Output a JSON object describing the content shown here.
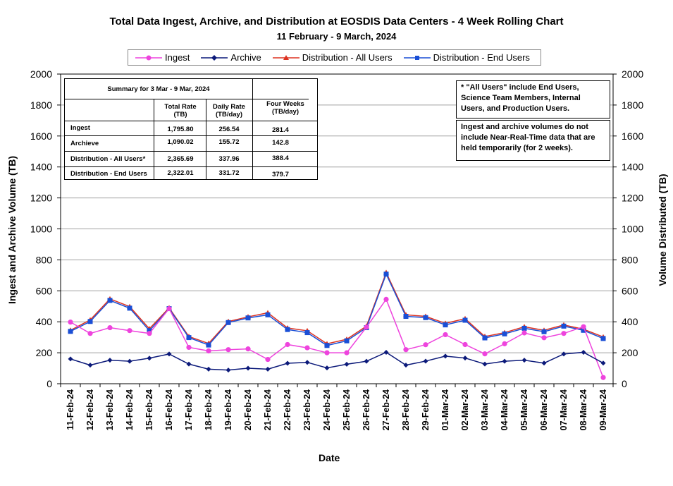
{
  "title": "Total Data Ingest, Archive, and  Distribution at EOSDIS Data Centers - 4 Week Rolling Chart",
  "subtitle": "11  February   -  9  March,  2024",
  "legend": [
    {
      "label": "Ingest",
      "color": "#ee44dd",
      "marker": "circle"
    },
    {
      "label": "Archive",
      "color": "#0c1a7a",
      "marker": "diamond"
    },
    {
      "label": "Distribution - All Users",
      "color": "#dd3322",
      "marker": "triangle"
    },
    {
      "label": "Distribution - End Users",
      "color": "#1a4fd6",
      "marker": "square"
    }
  ],
  "summary": {
    "title": "Summary  for  3  Mar   -  9  Mar,  2024",
    "col_total": "Total Rate\n(TB)",
    "col_daily": "Daily Rate\n(TB/day)",
    "col_four": "Four Weeks\n(TB/day)",
    "rows": [
      {
        "label": "Ingest",
        "total": "1,795.80",
        "daily": "256.54",
        "four": "281.4"
      },
      {
        "label": "Archieve",
        "total": "1,090.02",
        "daily": "155.72",
        "four": "142.8"
      },
      {
        "label": "Distribution - All Users*",
        "total": "2,365.69",
        "daily": "337.96",
        "four": "388.4"
      },
      {
        "label": "Distribution - End Users",
        "total": "2,322.01",
        "daily": "331.72",
        "four": "379.7"
      }
    ]
  },
  "notes": {
    "all_users": "* \"All Users\" include End Users, Science Team Members,  Internal Users, and Production Users.",
    "nrt": "Ingest and archive volumes do not include Near-Real-Time data that are held temporarily (for 2 weeks)."
  },
  "chart_data": {
    "type": "line",
    "title": "Total Data Ingest, Archive, and  Distribution at EOSDIS Data Centers - 4 Week Rolling Chart",
    "subtitle": "11  February   -  9  March,  2024",
    "xlabel": "Date",
    "ylabel": "Ingest and Archive Volume (TB)",
    "y2label": "Volume Distributed (TB)",
    "ylim": [
      0,
      2000
    ],
    "y2lim": [
      0,
      2000
    ],
    "yticks": [
      0,
      200,
      400,
      600,
      800,
      1000,
      1200,
      1400,
      1600,
      1800,
      2000
    ],
    "grid": true,
    "legend_position": "top",
    "categories": [
      "11-Feb-24",
      "12-Feb-24",
      "13-Feb-24",
      "14-Feb-24",
      "15-Feb-24",
      "16-Feb-24",
      "17-Feb-24",
      "18-Feb-24",
      "19-Feb-24",
      "20-Feb-24",
      "21-Feb-24",
      "22-Feb-24",
      "23-Feb-24",
      "24-Feb-24",
      "25-Feb-24",
      "26-Feb-24",
      "27-Feb-24",
      "28-Feb-24",
      "29-Feb-24",
      "01-Mar-24",
      "02-Mar-24",
      "03-Mar-24",
      "04-Mar-24",
      "05-Mar-24",
      "06-Mar-24",
      "07-Mar-24",
      "08-Mar-24",
      "09-Mar-24"
    ],
    "series": [
      {
        "name": "Ingest",
        "color": "#ee44dd",
        "marker": "circle",
        "values": [
          398,
          325,
          362,
          343,
          325,
          485,
          235,
          212,
          220,
          225,
          157,
          253,
          232,
          200,
          200,
          365,
          545,
          220,
          252,
          317,
          253,
          193,
          258,
          328,
          297,
          325,
          368,
          40
        ]
      },
      {
        "name": "Archive",
        "color": "#0c1a7a",
        "marker": "diamond",
        "values": [
          160,
          120,
          152,
          145,
          165,
          192,
          127,
          94,
          88,
          100,
          94,
          132,
          138,
          102,
          126,
          145,
          203,
          120,
          146,
          178,
          166,
          127,
          145,
          152,
          133,
          192,
          203,
          133
        ]
      },
      {
        "name": "Distribution - All Users",
        "color": "#dd3322",
        "marker": "triangle",
        "values": [
          345,
          412,
          548,
          498,
          355,
          490,
          305,
          260,
          402,
          432,
          458,
          360,
          342,
          258,
          287,
          372,
          718,
          445,
          435,
          390,
          420,
          305,
          330,
          368,
          345,
          380,
          352,
          302
        ]
      },
      {
        "name": "Distribution - End Users",
        "color": "#1a4fd6",
        "marker": "square",
        "values": [
          338,
          402,
          538,
          488,
          343,
          485,
          298,
          250,
          395,
          425,
          445,
          350,
          330,
          247,
          277,
          362,
          708,
          435,
          427,
          380,
          410,
          296,
          322,
          358,
          336,
          372,
          345,
          292
        ]
      }
    ]
  }
}
